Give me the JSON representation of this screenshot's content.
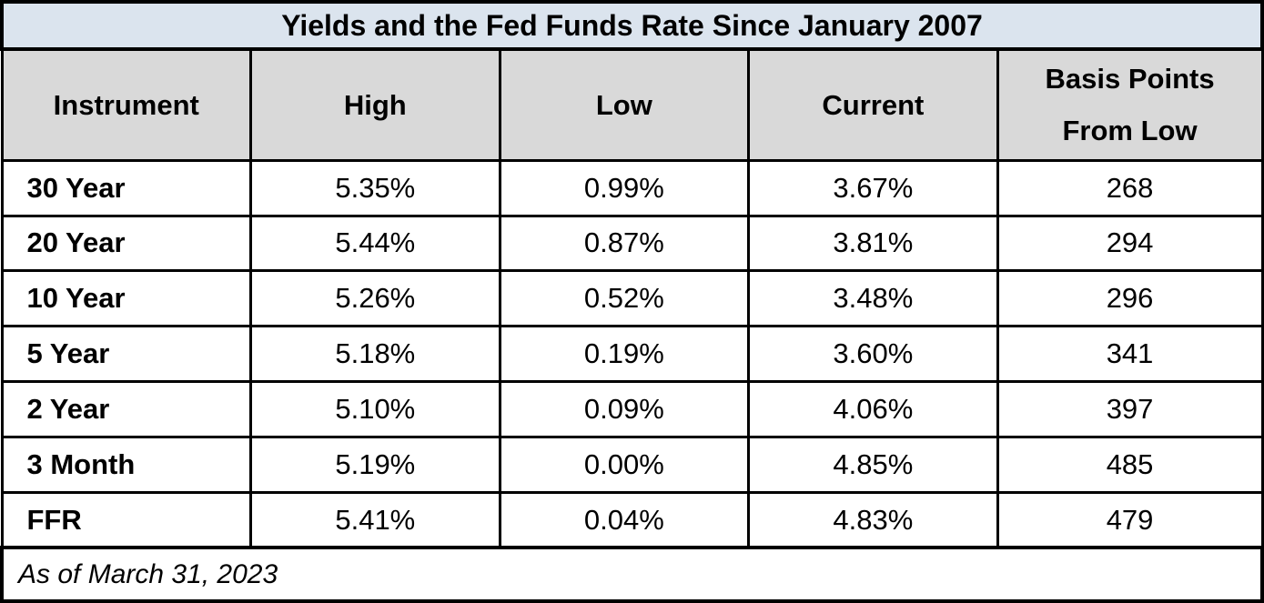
{
  "title": "Yields and the Fed Funds Rate Since January 2007",
  "footer": "As of March 31, 2023",
  "colors": {
    "title_bg": "#dbe4ee",
    "header_bg": "#d9d9d9",
    "border": "#000000",
    "text": "#000000",
    "row_bg": "#ffffff"
  },
  "table": {
    "headers": [
      "Instrument",
      "High",
      "Low",
      "Current",
      "Basis Points From Low"
    ],
    "rows": [
      {
        "instrument": "30 Year",
        "high": "5.35%",
        "low": "0.99%",
        "current": "3.67%",
        "bps": "268"
      },
      {
        "instrument": "20 Year",
        "high": "5.44%",
        "low": "0.87%",
        "current": "3.81%",
        "bps": "294"
      },
      {
        "instrument": "10 Year",
        "high": "5.26%",
        "low": "0.52%",
        "current": "3.48%",
        "bps": "296"
      },
      {
        "instrument": "5 Year",
        "high": "5.18%",
        "low": "0.19%",
        "current": "3.60%",
        "bps": "341"
      },
      {
        "instrument": "2 Year",
        "high": "5.10%",
        "low": "0.09%",
        "current": "4.06%",
        "bps": "397"
      },
      {
        "instrument": "3 Month",
        "high": "5.19%",
        "low": "0.00%",
        "current": "4.85%",
        "bps": "485"
      },
      {
        "instrument": "FFR",
        "high": "5.41%",
        "low": "0.04%",
        "current": "4.83%",
        "bps": "479"
      }
    ]
  },
  "chart_data": {
    "type": "table",
    "title": "Yields and the Fed Funds Rate Since January 2007",
    "columns": [
      "Instrument",
      "High",
      "Low",
      "Current",
      "Basis Points From Low"
    ],
    "rows": [
      [
        "30 Year",
        "5.35%",
        "0.99%",
        "3.67%",
        268
      ],
      [
        "20 Year",
        "5.44%",
        "0.87%",
        "3.81%",
        294
      ],
      [
        "10 Year",
        "5.26%",
        "0.52%",
        "3.48%",
        296
      ],
      [
        "5 Year",
        "5.18%",
        "0.19%",
        "3.60%",
        341
      ],
      [
        "2 Year",
        "5.10%",
        "0.09%",
        "4.06%",
        397
      ],
      [
        "3 Month",
        "5.19%",
        "0.00%",
        "4.85%",
        485
      ],
      [
        "FFR",
        "5.41%",
        "0.04%",
        "4.83%",
        479
      ]
    ],
    "footnote": "As of March 31, 2023"
  }
}
